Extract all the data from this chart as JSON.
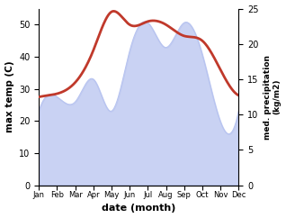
{
  "months": [
    "Jan",
    "Feb",
    "Mar",
    "Apr",
    "May",
    "Jun",
    "Jul",
    "Aug",
    "Sep",
    "Oct",
    "Nov",
    "Dec"
  ],
  "temp": [
    27.5,
    28.5,
    32.0,
    42.0,
    54.0,
    50.0,
    51.0,
    50.0,
    46.5,
    45.0,
    36.0,
    28.0
  ],
  "precip": [
    10.5,
    12.5,
    11.8,
    15.0,
    10.5,
    19.0,
    23.0,
    19.5,
    23.0,
    18.5,
    9.0,
    10.5
  ],
  "temp_color": "#c0392b",
  "precip_fill_color": "#b8c4f0",
  "temp_ylim": [
    0,
    55
  ],
  "precip_ylim": [
    0,
    25
  ],
  "xlabel": "date (month)",
  "ylabel_left": "max temp (C)",
  "ylabel_right": "med. precipitation\n(kg/m2)",
  "background_color": "#ffffff",
  "temp_linewidth": 2.0,
  "figsize": [
    3.18,
    2.42
  ],
  "dpi": 100
}
